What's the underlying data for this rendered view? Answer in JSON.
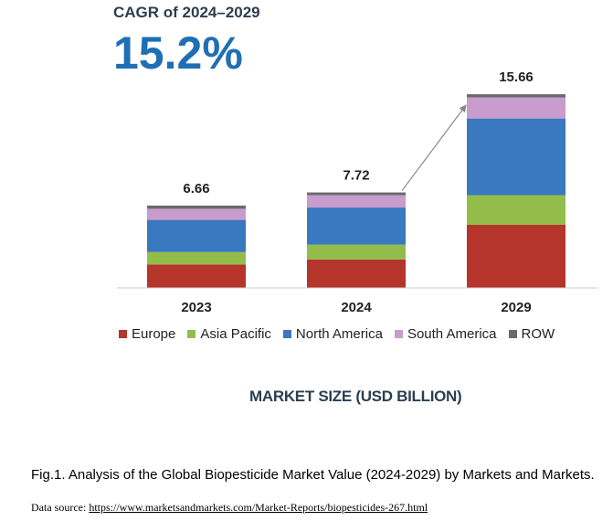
{
  "cagr": {
    "label": "CAGR of 2024–2029",
    "value": "15.2%"
  },
  "chart_data": {
    "type": "bar",
    "stacked": true,
    "categories": [
      "2023",
      "2024",
      "2029"
    ],
    "totals": [
      "6.66",
      "7.72",
      "15.66"
    ],
    "ylim": [
      0,
      17
    ],
    "grid": false,
    "legend_position": "bottom",
    "series": [
      {
        "name": "Europe",
        "color": "#b5342b",
        "values": [
          1.9,
          2.3,
          5.1
        ]
      },
      {
        "name": "Asia Pacific",
        "color": "#93bd4a",
        "values": [
          1.0,
          1.2,
          2.4
        ]
      },
      {
        "name": "North America",
        "color": "#3a78c0",
        "values": [
          2.6,
          3.0,
          6.2
        ]
      },
      {
        "name": "South America",
        "color": "#c89ccd",
        "values": [
          0.9,
          1.0,
          1.7
        ]
      },
      {
        "name": "ROW",
        "color": "#6a6a6a",
        "values": [
          0.26,
          0.22,
          0.26
        ]
      }
    ],
    "xlabel": "MARKET SIZE (USD BILLION)"
  },
  "caption": "Fig.1. Analysis of the Global Biopesticide Market Value (2024-2029) by Markets and Markets.",
  "source": {
    "prefix": "Data source: ",
    "link_text": "https://www.marketsandmarkets.com/Market-Reports/biopesticides-267.html"
  }
}
